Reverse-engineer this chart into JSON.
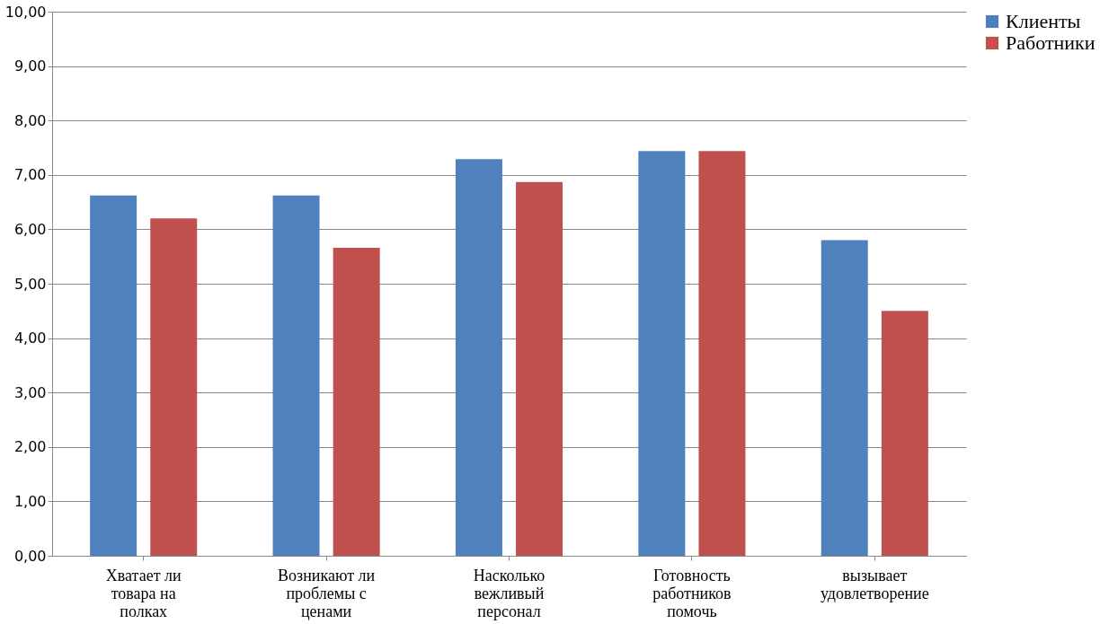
{
  "chart_data": {
    "type": "bar",
    "categories": [
      "Хватает ли\nтовара на\nполках",
      "Возникают ли\nпроблемы с\nценами",
      "Насколько\nвежливый\nперсонал",
      "Готовность\nработников\nпомочь",
      "вызывает\nудовлетворение"
    ],
    "series": [
      {
        "name": "Клиенты",
        "color": "#4f81bd",
        "values": [
          6.62,
          6.62,
          7.29,
          7.44,
          5.8
        ]
      },
      {
        "name": "Работники",
        "color": "#c0504d",
        "values": [
          6.2,
          5.66,
          6.87,
          7.44,
          4.5
        ]
      }
    ],
    "ylim": [
      0,
      10
    ],
    "yticks": [
      {
        "value": 0,
        "label": "0,00"
      },
      {
        "value": 1,
        "label": "1,00"
      },
      {
        "value": 2,
        "label": "2,00"
      },
      {
        "value": 3,
        "label": "3,00"
      },
      {
        "value": 4,
        "label": "4,00"
      },
      {
        "value": 5,
        "label": "5,00"
      },
      {
        "value": 6,
        "label": "6,00"
      },
      {
        "value": 7,
        "label": "7,00"
      },
      {
        "value": 8,
        "label": "8,00"
      },
      {
        "value": 9,
        "label": "9,00"
      },
      {
        "value": 10,
        "label": "10,00"
      }
    ],
    "grid": "y",
    "legend": "right"
  }
}
